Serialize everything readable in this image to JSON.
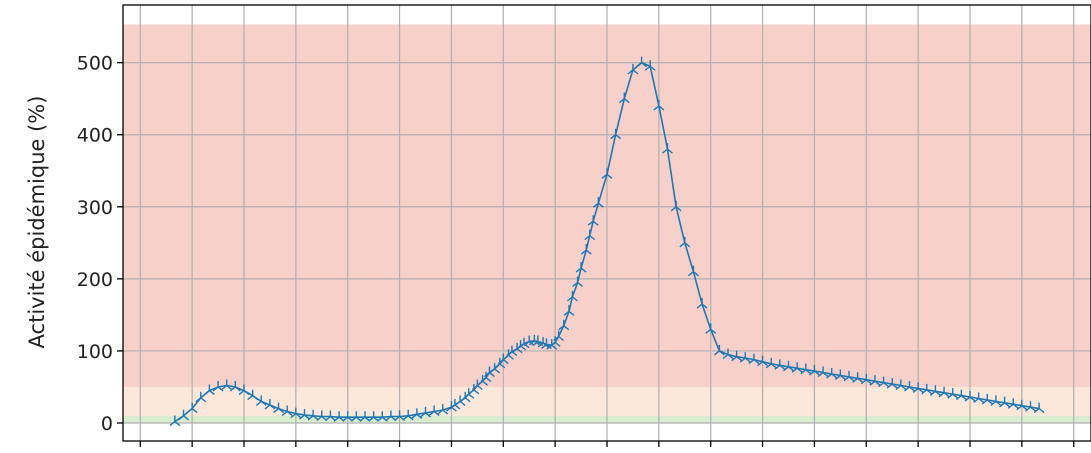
{
  "chart_data": {
    "type": "line",
    "title": "",
    "xlabel": "",
    "ylabel": "Activité épidémique (%)",
    "ylim": [
      -25,
      580
    ],
    "yticks": [
      0,
      100,
      200,
      300,
      400,
      500
    ],
    "grid": true,
    "legend": "none",
    "bands": [
      {
        "from": 0,
        "to": 10,
        "color": "#d9ecd0"
      },
      {
        "from": 10,
        "to": 50,
        "color": "#fbe8da"
      },
      {
        "from": 50,
        "to": 553,
        "color": "#f8d0ca"
      }
    ],
    "series": [
      {
        "color": "#1f77b4",
        "marker": "tri",
        "x": [
          0,
          5,
          10,
          15,
          20,
          25,
          30,
          35,
          40,
          45,
          50,
          55,
          60,
          65,
          70,
          75,
          80,
          85,
          90,
          95,
          100,
          105,
          110,
          115,
          120,
          125,
          130,
          135,
          140,
          145,
          150,
          155,
          160,
          162,
          165,
          168,
          170,
          173,
          175,
          178,
          180,
          182,
          185,
          188,
          190,
          193,
          195,
          198,
          200,
          202,
          205,
          208,
          210,
          213,
          215,
          218,
          220,
          222,
          225,
          228,
          230,
          233,
          235,
          238,
          240,
          242,
          245,
          250,
          255,
          260,
          265,
          270,
          275,
          280,
          285,
          290,
          295,
          300,
          305,
          310,
          315,
          320,
          325,
          330,
          335,
          340,
          345,
          350,
          355,
          360,
          365,
          370,
          375,
          380,
          385,
          390,
          395,
          400,
          405,
          410,
          415,
          420,
          425,
          430,
          435,
          440,
          445,
          450,
          455,
          460,
          465,
          470,
          475,
          480,
          485,
          490,
          495,
          500
        ],
        "y": [
          2,
          10,
          20,
          35,
          45,
          50,
          52,
          50,
          45,
          38,
          30,
          25,
          20,
          16,
          13,
          11,
          10,
          9,
          9,
          8,
          8,
          8,
          8,
          8,
          8,
          9,
          9,
          10,
          12,
          14,
          16,
          18,
          22,
          25,
          30,
          35,
          40,
          46,
          52,
          58,
          63,
          70,
          75,
          82,
          88,
          94,
          99,
          103,
          107,
          110,
          113,
          114,
          113,
          111,
          109,
          108,
          112,
          120,
          135,
          155,
          175,
          195,
          215,
          240,
          260,
          280,
          305,
          345,
          400,
          450,
          490,
          500,
          495,
          440,
          380,
          300,
          250,
          210,
          165,
          130,
          100,
          95,
          92,
          90,
          88,
          85,
          82,
          80,
          78,
          76,
          74,
          72,
          70,
          68,
          66,
          64,
          62,
          60,
          58,
          56,
          54,
          52,
          50,
          48,
          46,
          44,
          42,
          40,
          38,
          36,
          34,
          32,
          30,
          28,
          26,
          24,
          22,
          20
        ]
      }
    ]
  }
}
